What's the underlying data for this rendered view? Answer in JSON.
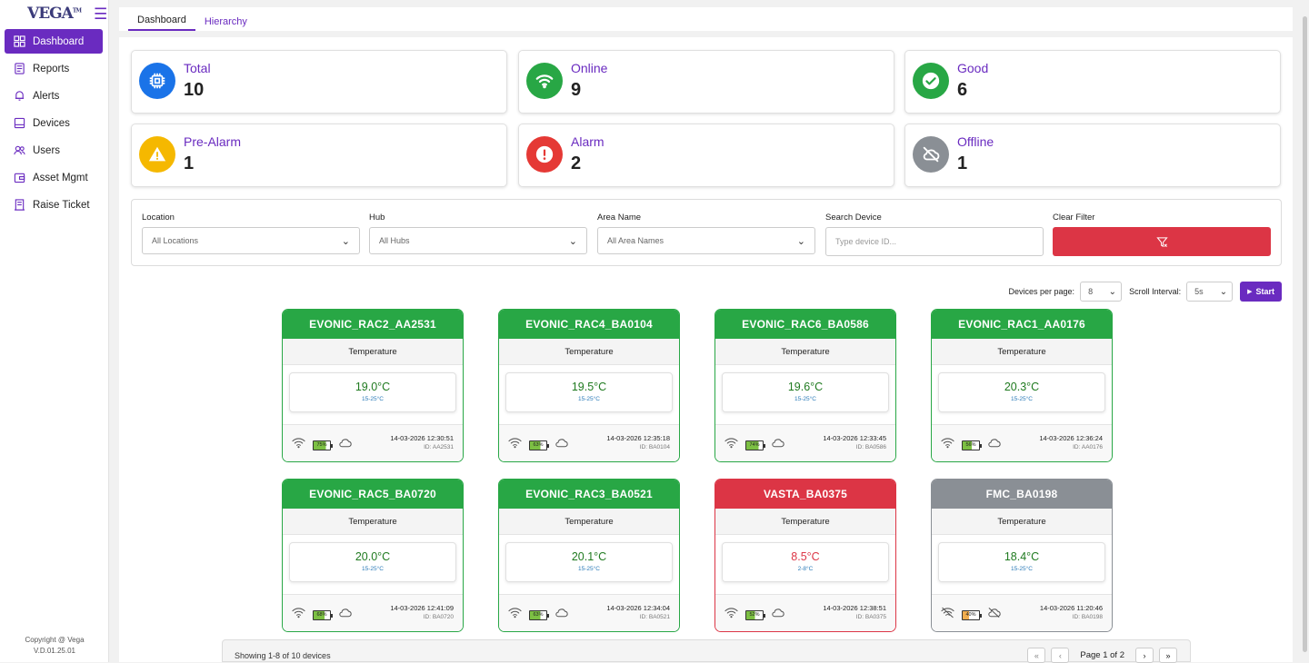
{
  "app": {
    "logo": "VEGA",
    "logo_tm": "TM"
  },
  "sidebar": {
    "items": [
      {
        "label": "Dashboard",
        "icon": "dashboard-icon"
      },
      {
        "label": "Reports",
        "icon": "report-icon"
      },
      {
        "label": "Alerts",
        "icon": "bell-icon"
      },
      {
        "label": "Devices",
        "icon": "device-icon"
      },
      {
        "label": "Users",
        "icon": "users-icon"
      },
      {
        "label": "Asset Mgmt",
        "icon": "wallet-icon"
      },
      {
        "label": "Raise Ticket",
        "icon": "ticket-icon"
      }
    ],
    "copyright": "Copyright @ Vega",
    "version": "V.D.01.25.01"
  },
  "tabs": {
    "dashboard": "Dashboard",
    "hierarchy": "Hierarchy"
  },
  "stats": [
    {
      "label": "Total",
      "value": "10",
      "color": "#1a73e8",
      "icon": "chip-icon"
    },
    {
      "label": "Online",
      "value": "9",
      "color": "#28a745",
      "icon": "wifi-icon"
    },
    {
      "label": "Good",
      "value": "6",
      "color": "#28a745",
      "icon": "check-circle-icon"
    },
    {
      "label": "Pre-Alarm",
      "value": "1",
      "color": "#f5b800",
      "icon": "warning-icon"
    },
    {
      "label": "Alarm",
      "value": "2",
      "color": "#e53935",
      "icon": "exclamation-icon"
    },
    {
      "label": "Offline",
      "value": "1",
      "color": "#8a8f95",
      "icon": "cloud-off-icon"
    }
  ],
  "filters": {
    "location": {
      "label": "Location",
      "value": "All Locations"
    },
    "hub": {
      "label": "Hub",
      "value": "All Hubs"
    },
    "area": {
      "label": "Area Name",
      "value": "All Area Names"
    },
    "search": {
      "label": "Search Device",
      "placeholder": "Type device ID..."
    },
    "clear": {
      "label": "Clear Filter"
    }
  },
  "controls": {
    "per_page_label": "Devices per page:",
    "per_page_value": "8",
    "interval_label": "Scroll Interval:",
    "interval_value": "5s",
    "start_label": "Start"
  },
  "devices": [
    {
      "name": "EVONIC_RAC2_AA2531",
      "type": "Temperature",
      "value": "19.0°C",
      "range": "15-25°C",
      "battery": "75%",
      "time": "14-03-2026 12:30:51",
      "id": "ID: AA2531",
      "status": "good"
    },
    {
      "name": "EVONIC_RAC4_BA0104",
      "type": "Temperature",
      "value": "19.5°C",
      "range": "15-25°C",
      "battery": "63%",
      "time": "14-03-2026 12:35:18",
      "id": "ID: BA0104",
      "status": "good"
    },
    {
      "name": "EVONIC_RAC6_BA0586",
      "type": "Temperature",
      "value": "19.6°C",
      "range": "15-25°C",
      "battery": "74%",
      "time": "14-03-2026 12:33:45",
      "id": "ID: BA0586",
      "status": "good"
    },
    {
      "name": "EVONIC_RAC1_AA0176",
      "type": "Temperature",
      "value": "20.3°C",
      "range": "15-25°C",
      "battery": "56%",
      "time": "14-03-2026 12:36:24",
      "id": "ID: AA0176",
      "status": "good"
    },
    {
      "name": "EVONIC_RAC5_BA0720",
      "type": "Temperature",
      "value": "20.0°C",
      "range": "15-25°C",
      "battery": "68%",
      "time": "14-03-2026 12:41:09",
      "id": "ID: BA0720",
      "status": "good"
    },
    {
      "name": "EVONIC_RAC3_BA0521",
      "type": "Temperature",
      "value": "20.1°C",
      "range": "15-25°C",
      "battery": "63%",
      "time": "14-03-2026 12:34:04",
      "id": "ID: BA0521",
      "status": "good"
    },
    {
      "name": "VASTA_BA0375",
      "type": "Temperature",
      "value": "8.5°C",
      "range": "2-8°C",
      "battery": "52%",
      "time": "14-03-2026 12:38:51",
      "id": "ID: BA0375",
      "status": "alarm"
    },
    {
      "name": "FMC_BA0198",
      "type": "Temperature",
      "value": "18.4°C",
      "range": "15-25°C",
      "battery": "40%",
      "time": "14-03-2026 11:20:46",
      "id": "ID: BA0198",
      "status": "offline"
    }
  ],
  "pager": {
    "showing": "Showing 1-8 of 10 devices",
    "page": "Page 1 of 2"
  }
}
